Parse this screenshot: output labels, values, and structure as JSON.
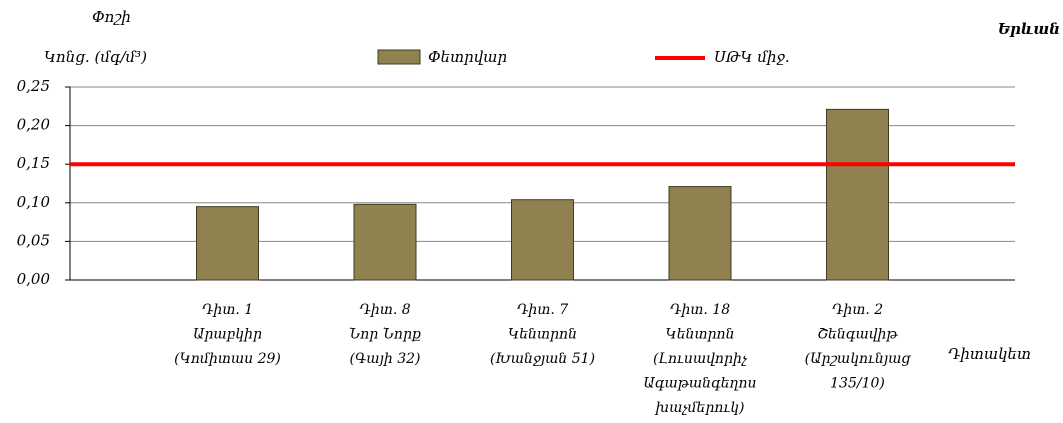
{
  "chart_data": {
    "type": "bar",
    "title": "Երևան",
    "y_label": [
      "Փոշի",
      "Կոնց. (մգ/մ³)"
    ],
    "x_label": "Դիտակետ",
    "categories": [
      [
        "Դիտ. 1",
        "Արաբկիր",
        "(Կոմիտաս 29)"
      ],
      [
        "Դիտ. 8",
        "Նոր Նորք",
        "(Գայի 32)"
      ],
      [
        "Դիտ. 7",
        "Կենտրոն",
        "(Խանջյան 51)"
      ],
      [
        "Դիտ. 18",
        "Կենտրոն",
        "(Լուսավորիչ",
        "Ագաթանգեղոս",
        "խաչմերուկ)"
      ],
      [
        "Դիտ. 2",
        "Շենգավիթ",
        "(Արշակունյաց",
        "135/10)"
      ]
    ],
    "series": [
      {
        "name": "Փետրվար",
        "color": "#8f8150",
        "values": [
          0.095,
          0.098,
          0.104,
          0.121,
          0.221
        ]
      }
    ],
    "reference_line": {
      "name": "ՍԹԿ միջ.",
      "color": "#ff0000",
      "value": 0.15
    },
    "ylim": [
      0,
      0.25
    ],
    "yticks": [
      {
        "value": 0,
        "label": "0,00"
      },
      {
        "value": 0.05,
        "label": "0,05"
      },
      {
        "value": 0.1,
        "label": "0,10"
      },
      {
        "value": 0.15,
        "label": "0,15"
      },
      {
        "value": 0.2,
        "label": "0,20"
      },
      {
        "value": 0.25,
        "label": "0,25"
      }
    ],
    "grid": true
  }
}
